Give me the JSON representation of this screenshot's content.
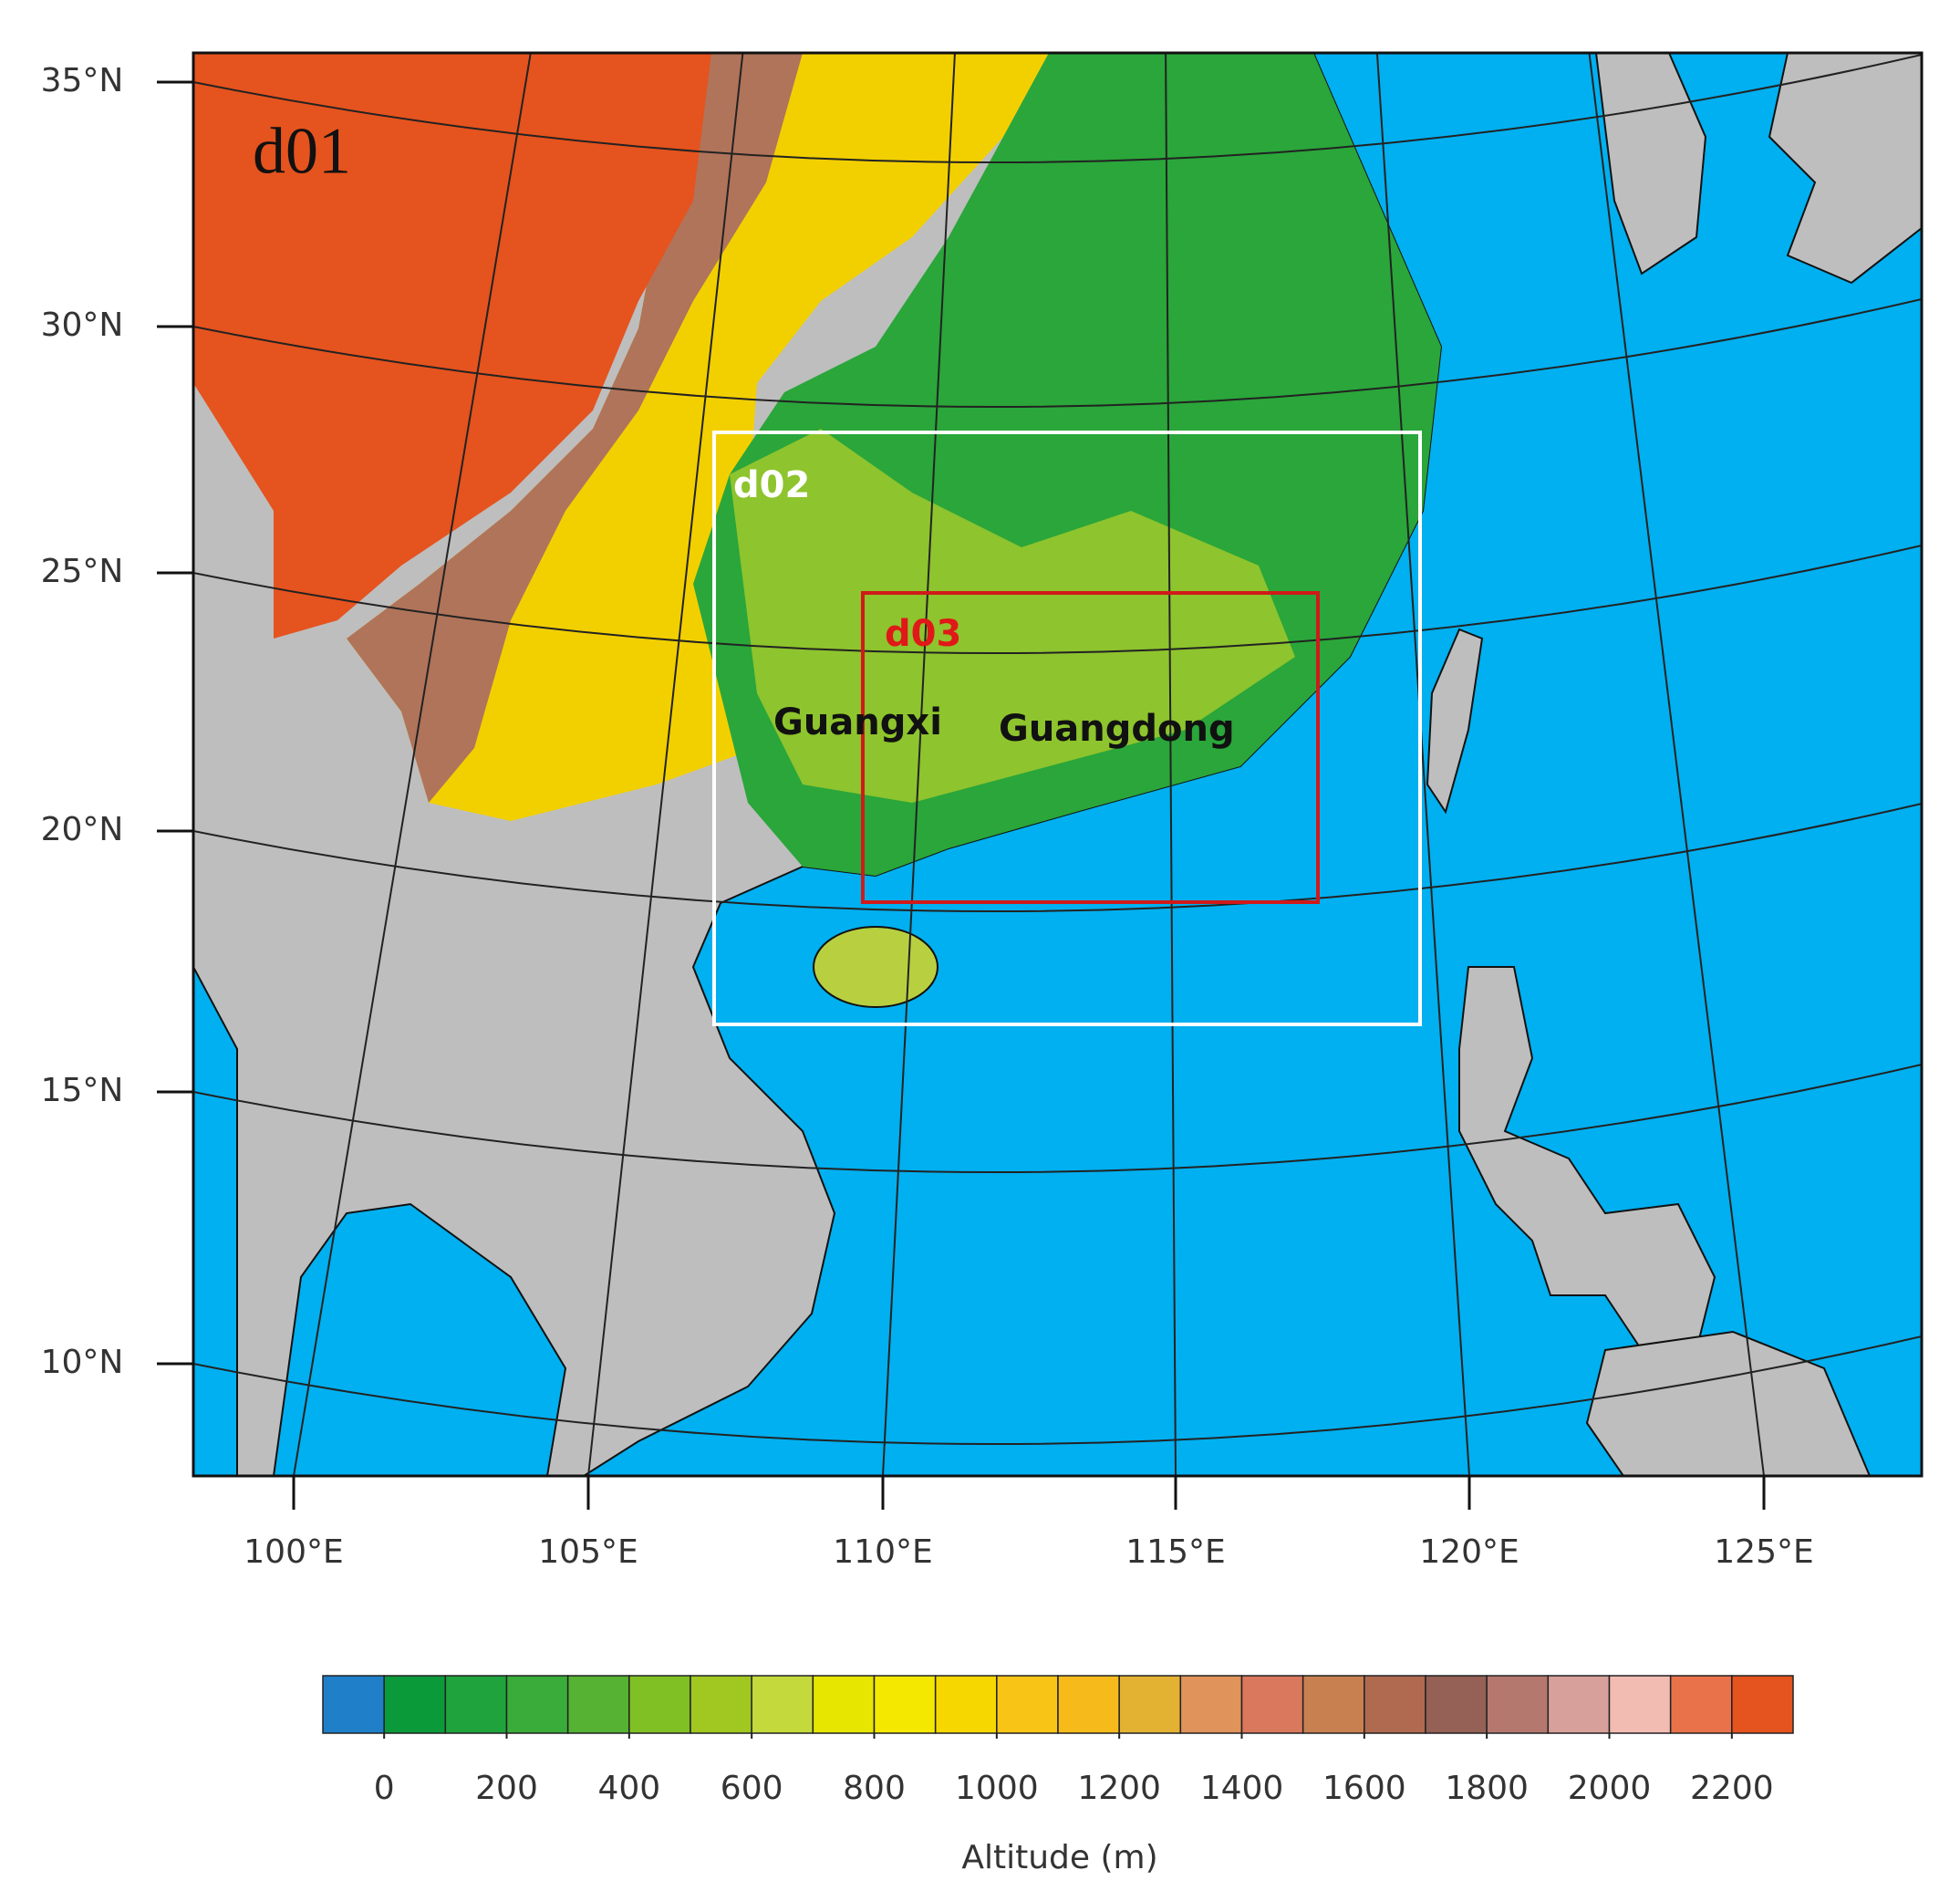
{
  "map": {
    "domain_labels": [
      "d01",
      "d02",
      "d03"
    ],
    "region_labels": [
      "Guangxi",
      "Guangdong"
    ],
    "lat_labels": [
      "35°N",
      "30°N",
      "25°N",
      "20°N",
      "15°N",
      "10°N"
    ],
    "lon_labels": [
      "100°E",
      "105°E",
      "110°E",
      "115°E",
      "120°E",
      "125°E"
    ],
    "colorbar": {
      "colors": [
        "#1f7fc8",
        "#0a9a3a",
        "#1fa33c",
        "#3aac3a",
        "#55b232",
        "#80c024",
        "#a0c820",
        "#c4d93c",
        "#e6e600",
        "#f5e800",
        "#f7d700",
        "#f8c516",
        "#f6bb1a",
        "#e3b232",
        "#e0935a",
        "#d9785c",
        "#c98050",
        "#b06a50",
        "#956055",
        "#b5786f",
        "#d8a09a",
        "#f2bcb3",
        "#e9724a",
        "#e5531e"
      ],
      "ticks": [
        0,
        200,
        400,
        600,
        800,
        1000,
        1200,
        1400,
        1600,
        1800,
        2000,
        2200
      ],
      "title": "Altitude (m)"
    }
  }
}
